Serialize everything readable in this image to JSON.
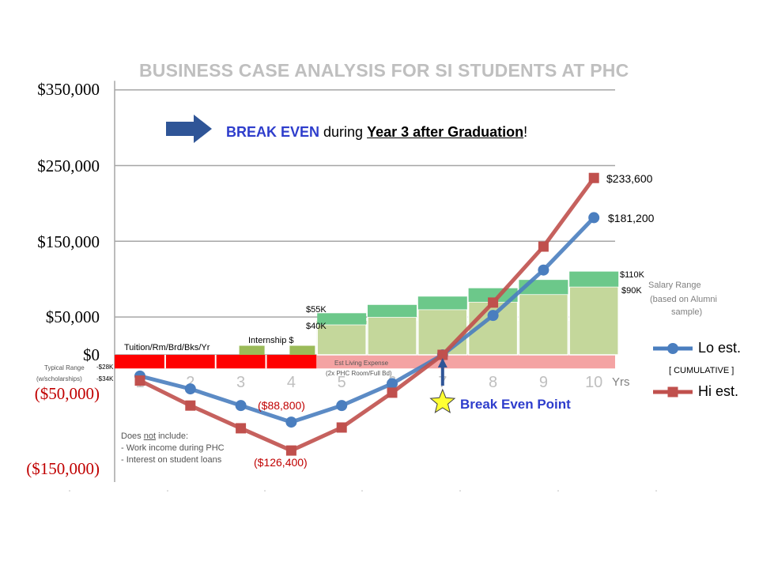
{
  "title": "BUSINESS CASE ANALYSIS FOR SI STUDENTS AT PHC",
  "banner": {
    "part1": "BREAK EVEN",
    "part2": " during ",
    "part3": "Year 3 after Graduation",
    "part4": "!"
  },
  "y_axis": {
    "labels": [
      "$350,000",
      "$250,000",
      "$150,000",
      "$50,000",
      "$0",
      "($50,000)",
      "($150,000)"
    ]
  },
  "labels": {
    "tuition": "Tuition/Rm/Brd/Bks/Yr",
    "internship": "Internship $",
    "est_living": "Est Living Expense",
    "est_living_sub": "(2x PHC Room/Full Bd)",
    "typical_range": "Typical Range",
    "typical_range_sub": "(w/scholarships)",
    "neg28": "-$28K",
    "neg34": "-$34K",
    "k55": "$55K",
    "k40": "$40K",
    "k110": "$110K",
    "k90": "$90K",
    "salary_range_1": "Salary Range",
    "salary_range_2": "(based on Alumni",
    "salary_range_3": "sample)",
    "val_233": "$233,600",
    "val_181": "$181,200",
    "val_88": "($88,800)",
    "val_126": "($126,400)",
    "yrs": "Yrs",
    "cumulative": "[ CUMULATIVE ]",
    "break_even_point": "Break Even Point",
    "note_title": "Does not include:",
    "note_1": "- Work income during PHC",
    "note_2": "- Interest on student loans"
  },
  "legend": {
    "lo": "Lo est.",
    "hi": "Hi est."
  },
  "colors": {
    "lo": "#4a7ebf",
    "hi": "#c0504d",
    "red_bar": "#ff0000",
    "pink_bar": "#f4a3a3",
    "green_light": "#c4d79b",
    "green_dark": "#6cc88a",
    "olive": "#9bbb59",
    "arrow": "#2f5597",
    "star": "#ffff33"
  },
  "chart_data": {
    "type": "line",
    "x": [
      1,
      2,
      3,
      4,
      5,
      6,
      7,
      8,
      9,
      10
    ],
    "series": [
      {
        "name": "Lo est.",
        "values": [
          -28000,
          -45000,
          -67000,
          -88800,
          -67000,
          -38000,
          0,
          52000,
          112000,
          181200
        ]
      },
      {
        "name": "Hi est.",
        "values": [
          -34000,
          -67000,
          -97000,
          -126400,
          -96000,
          -50000,
          0,
          69000,
          143000,
          233600
        ]
      }
    ],
    "salary_ranges": {
      "years": [
        5,
        6,
        7,
        8,
        9,
        10
      ],
      "low": [
        40000,
        50000,
        60000,
        70000,
        80000,
        90000
      ],
      "high": [
        55000,
        66000,
        77000,
        88000,
        99000,
        110000
      ]
    },
    "internship": {
      "years": [
        3,
        4
      ],
      "values": [
        12000,
        12000
      ]
    },
    "tuition_cost": {
      "years": [
        1,
        2,
        3,
        4
      ],
      "values": [
        -28000,
        -28000,
        -28000,
        -28000
      ]
    },
    "living_expense": {
      "years": [
        5,
        6,
        7,
        8,
        9,
        10
      ],
      "values": [
        -18000,
        -18000,
        -18000,
        -18000,
        -18000,
        -18000
      ]
    },
    "break_even_year": 7,
    "ylim": [
      -150000,
      350000
    ],
    "xlabel": "Yrs"
  }
}
